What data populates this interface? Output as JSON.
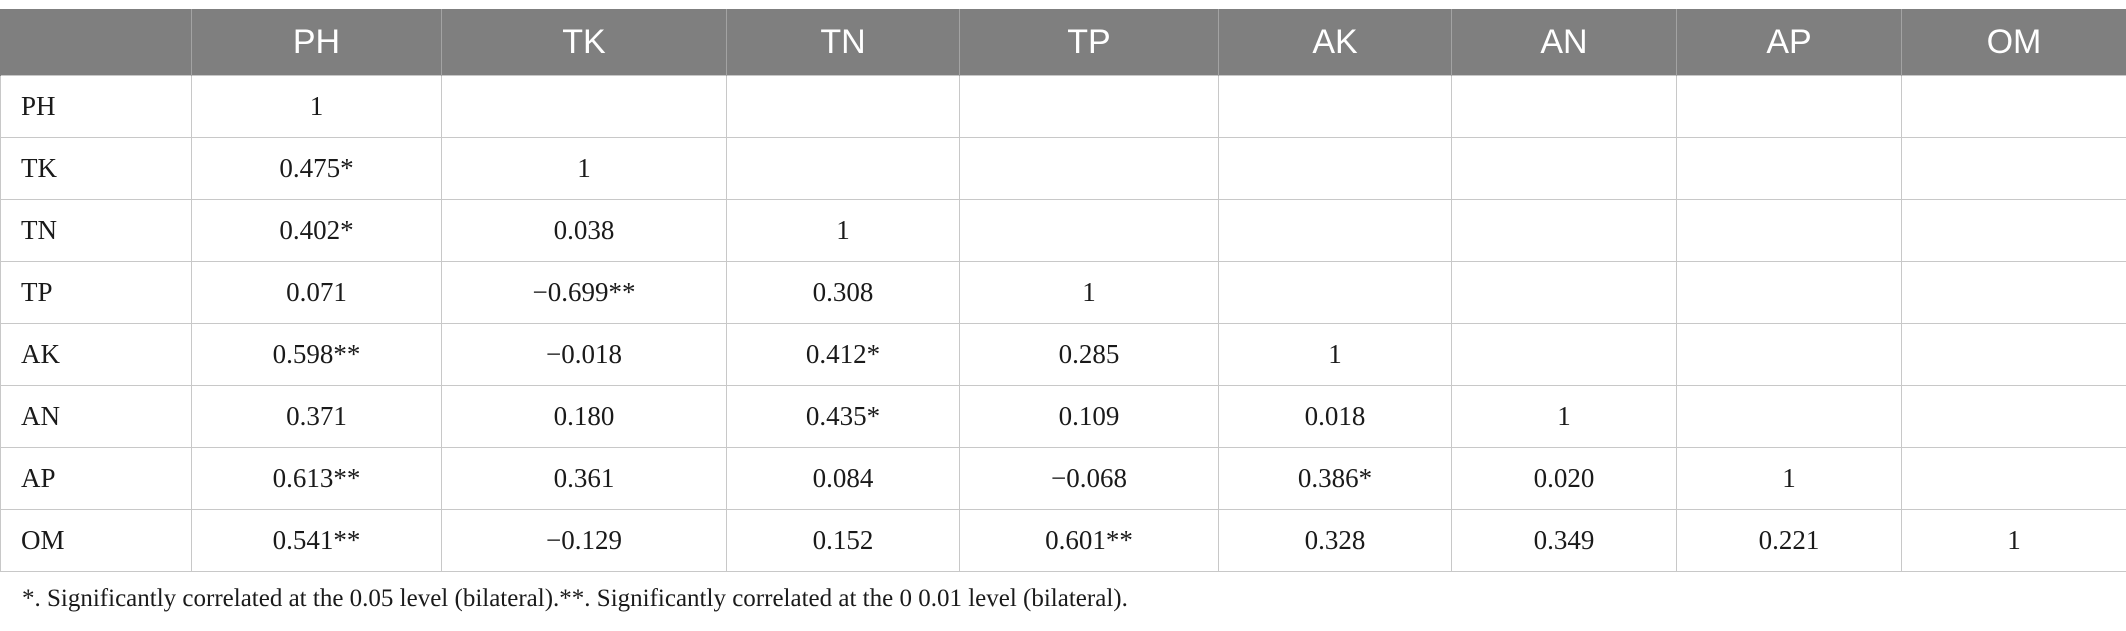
{
  "table": {
    "columns": [
      "",
      "PH",
      "TK",
      "TN",
      "TP",
      "AK",
      "AN",
      "AP",
      "OM"
    ],
    "rows": [
      [
        "PH",
        "1",
        "",
        "",
        "",
        "",
        "",
        "",
        ""
      ],
      [
        "TK",
        "0.475*",
        "1",
        "",
        "",
        "",
        "",
        "",
        ""
      ],
      [
        "TN",
        "0.402*",
        "0.038",
        "1",
        "",
        "",
        "",
        "",
        ""
      ],
      [
        "TP",
        "0.071",
        "−0.699**",
        "0.308",
        "1",
        "",
        "",
        "",
        ""
      ],
      [
        "AK",
        "0.598**",
        "−0.018",
        "0.412*",
        "0.285",
        "1",
        "",
        "",
        ""
      ],
      [
        "AN",
        "0.371",
        "0.180",
        "0.435*",
        "0.109",
        "0.018",
        "1",
        "",
        ""
      ],
      [
        "AP",
        "0.613**",
        "0.361",
        "0.084",
        "−0.068",
        "0.386*",
        "0.020",
        "1",
        ""
      ],
      [
        "OM",
        "0.541**",
        "−0.129",
        "0.152",
        "0.601**",
        "0.328",
        "0.349",
        "0.221",
        "1"
      ]
    ]
  },
  "footnote": "*. Significantly correlated at the 0.05 level (bilateral).**. Significantly correlated at the 0 0.01 level (bilateral).",
  "colors": {
    "header_bg": "#7f7f7f",
    "header_text": "#ffffff",
    "grid": "#c8c8c8"
  }
}
